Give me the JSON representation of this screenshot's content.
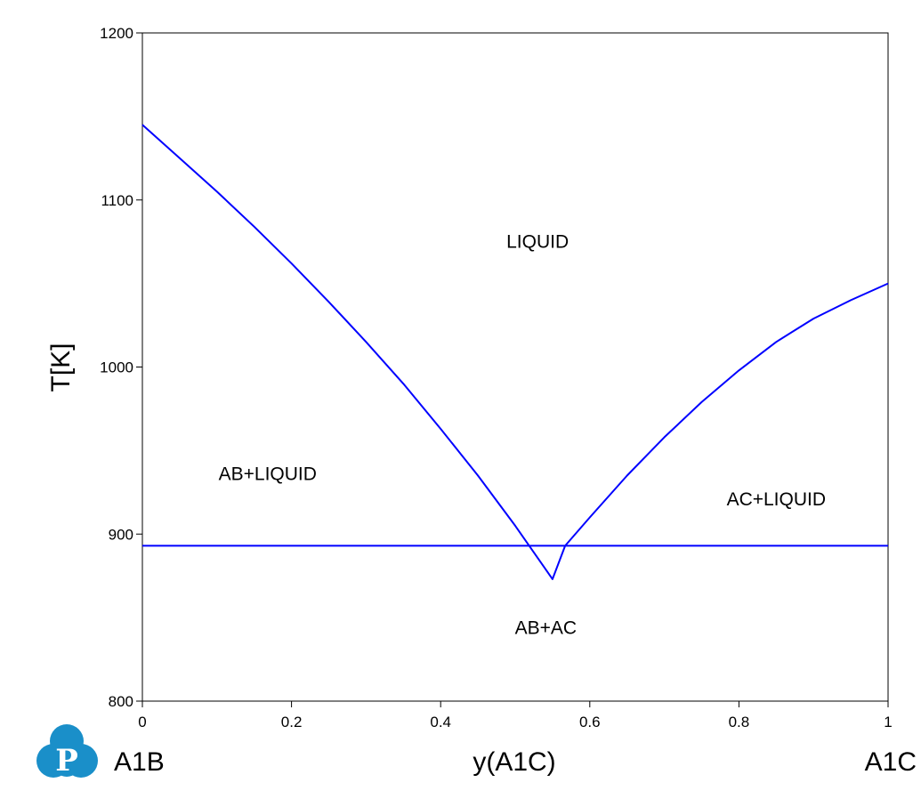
{
  "chart_data": {
    "type": "line",
    "title": "",
    "xlabel": "y(A1C)",
    "ylabel": "T[K]",
    "xlim": [
      0,
      1
    ],
    "ylim": [
      800,
      1200
    ],
    "x_ticks": [
      0,
      0.2,
      0.4,
      0.6,
      0.8,
      1
    ],
    "y_ticks": [
      800,
      900,
      1000,
      1100,
      1200
    ],
    "x_tick_labels": [
      "0",
      "0.2",
      "0.4",
      "0.6",
      "0.8",
      "1"
    ],
    "y_tick_labels": [
      "800",
      "900",
      "1000",
      "1100",
      "1200"
    ],
    "grid": false,
    "legend": "none",
    "line_color": "#0000ff",
    "endmembers": {
      "left": "A1B",
      "right": "A1C"
    },
    "series": [
      {
        "values": [
          [
            0,
            1145
          ],
          [
            0.05,
            1125
          ],
          [
            0.1,
            1105
          ],
          [
            0.15,
            1084
          ],
          [
            0.2,
            1062
          ],
          [
            0.25,
            1039
          ],
          [
            0.3,
            1015
          ],
          [
            0.35,
            990
          ],
          [
            0.4,
            963
          ],
          [
            0.45,
            935
          ],
          [
            0.5,
            905
          ],
          [
            0.55,
            873
          ],
          [
            0.567,
            893
          ]
        ]
      },
      {
        "values": [
          [
            0.567,
            893
          ],
          [
            0.6,
            910
          ],
          [
            0.65,
            935
          ],
          [
            0.7,
            958
          ],
          [
            0.75,
            979
          ],
          [
            0.8,
            998
          ],
          [
            0.85,
            1015
          ],
          [
            0.9,
            1029
          ],
          [
            0.95,
            1040
          ],
          [
            1,
            1050
          ]
        ]
      },
      {
        "values": [
          [
            0,
            893
          ],
          [
            1,
            893
          ]
        ]
      }
    ],
    "annotations": [
      {
        "text": "LIQUID",
        "x": 0.53,
        "y": 1075
      },
      {
        "text": "AB+LIQUID",
        "x": 0.168,
        "y": 936
      },
      {
        "text": "AC+LIQUID",
        "x": 0.85,
        "y": 921
      },
      {
        "text": "AB+AC",
        "x": 0.541,
        "y": 844
      }
    ]
  },
  "logo": {
    "name": "p-logo-icon",
    "color": "#1a8fc9"
  }
}
